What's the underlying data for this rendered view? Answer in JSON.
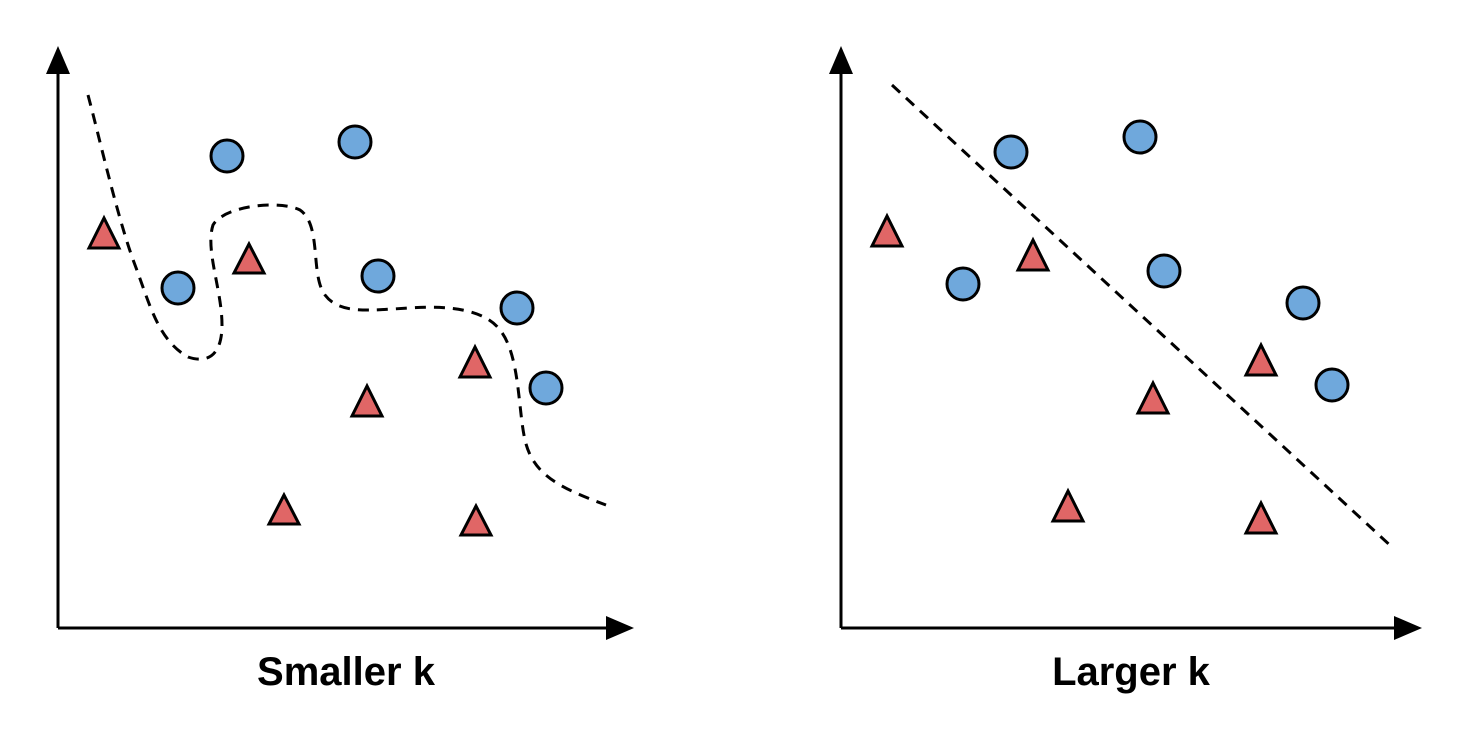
{
  "colors": {
    "circle_fill": "#6fa8dc",
    "triangle_fill": "#e06666",
    "outline": "#000000",
    "background": "#ffffff"
  },
  "markers": {
    "circle": "blue-circle",
    "triangle": "red-triangle"
  },
  "panels": [
    {
      "label": "Smaller k",
      "boundary_style": "dashed-curve"
    },
    {
      "label": "Larger k",
      "boundary_style": "dashed-straight-line"
    }
  ]
}
